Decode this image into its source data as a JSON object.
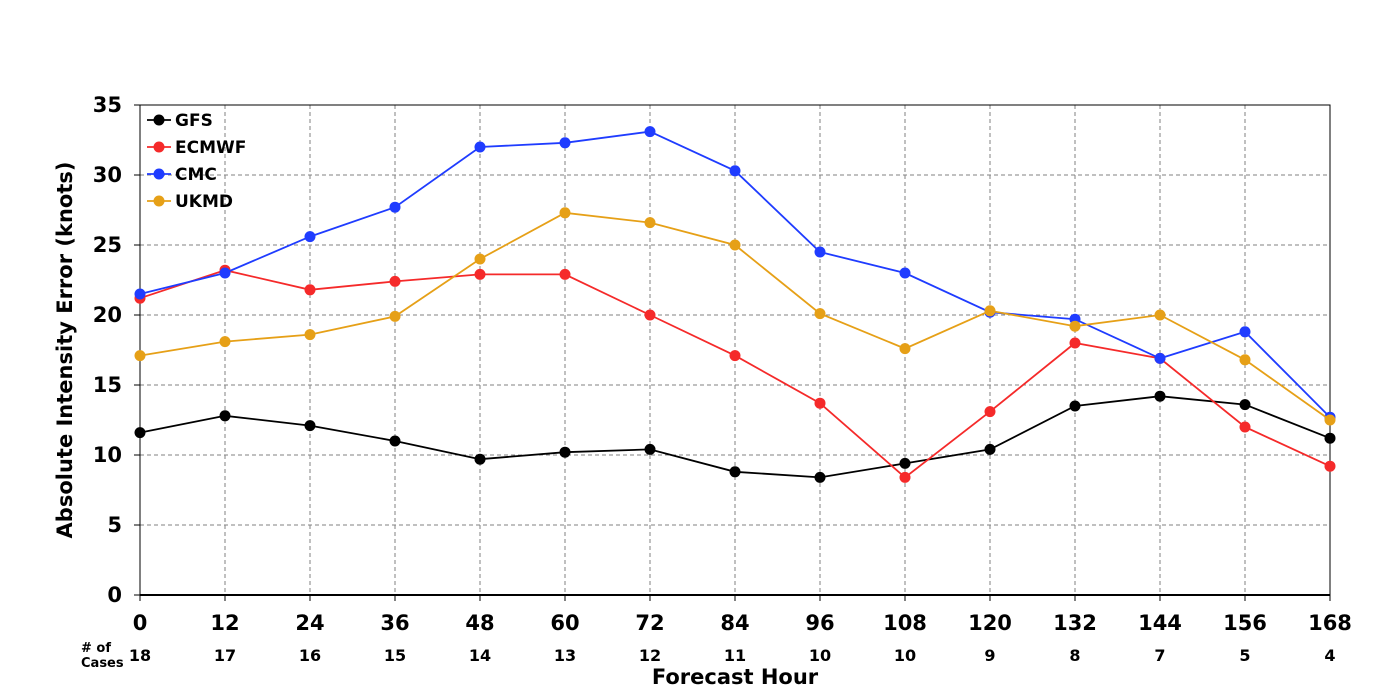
{
  "chart_data": {
    "type": "line",
    "title": "",
    "xlabel": "Forecast Hour",
    "ylabel": "Absolute Intensity Error (knots)",
    "x": [
      0,
      12,
      24,
      36,
      48,
      60,
      72,
      84,
      96,
      108,
      120,
      132,
      144,
      156,
      168
    ],
    "xlim": [
      0,
      168
    ],
    "ylim": [
      0,
      35
    ],
    "yticks": [
      0,
      5,
      10,
      15,
      20,
      25,
      30,
      35
    ],
    "grid": true,
    "legend_position": "top-left",
    "cases_label": "# of\nCases",
    "cases": [
      18,
      17,
      16,
      15,
      14,
      13,
      12,
      11,
      10,
      10,
      9,
      8,
      7,
      5,
      4
    ],
    "series": [
      {
        "name": "GFS",
        "color": "#000000",
        "values": [
          11.6,
          12.8,
          12.1,
          11.0,
          9.7,
          10.2,
          10.4,
          8.8,
          8.4,
          9.4,
          10.4,
          13.5,
          14.2,
          13.6,
          11.2
        ]
      },
      {
        "name": "ECMWF",
        "color": "#f52a2a",
        "values": [
          21.2,
          23.2,
          21.8,
          22.4,
          22.9,
          22.9,
          20.0,
          17.1,
          13.7,
          8.4,
          13.1,
          18.0,
          16.9,
          12.0,
          9.2
        ]
      },
      {
        "name": "CMC",
        "color": "#1f3cff",
        "values": [
          21.5,
          23.0,
          25.6,
          27.7,
          32.0,
          32.3,
          33.1,
          30.3,
          24.5,
          23.0,
          20.2,
          19.7,
          16.9,
          18.8,
          12.7
        ]
      },
      {
        "name": "UKMD",
        "color": "#e6a017",
        "values": [
          17.1,
          18.1,
          18.6,
          19.9,
          24.0,
          27.3,
          26.6,
          25.0,
          20.1,
          17.6,
          20.3,
          19.2,
          20.0,
          16.8,
          12.5
        ]
      }
    ]
  }
}
